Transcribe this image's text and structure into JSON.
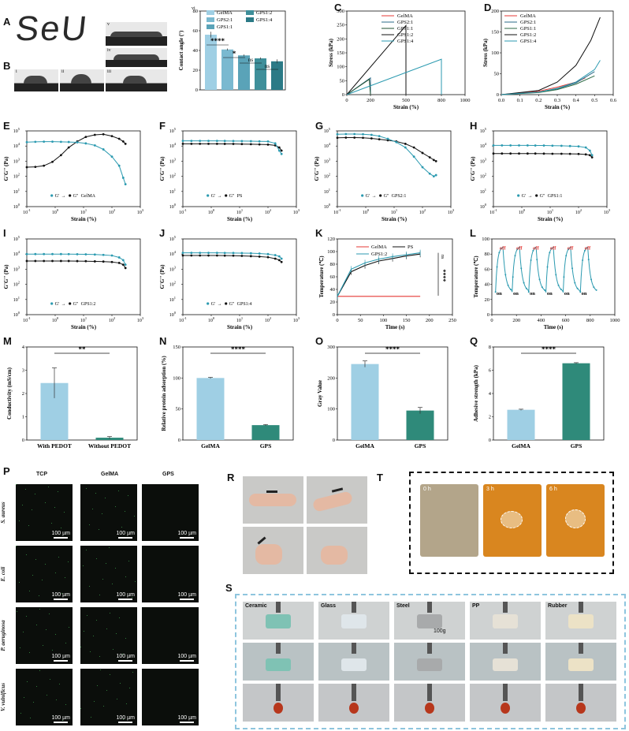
{
  "panels": {
    "A": "A",
    "B": "B",
    "C": "C",
    "D": "D",
    "E": "E",
    "F": "F",
    "G": "G",
    "H": "H",
    "I": "I",
    "J": "J",
    "K": "K",
    "L": "L",
    "M": "M",
    "N": "N",
    "O": "O",
    "Q": "Q",
    "P": "P",
    "R": "R",
    "T": "T",
    "S": "S"
  },
  "panel_a": {
    "writing": "SeU",
    "sublabels": [
      "v",
      "iv",
      "i",
      "ii",
      "iii"
    ]
  },
  "panel_b_chart": {
    "sublabel": "vi"
  },
  "panel_p": {
    "columns": [
      "TCP",
      "GelMA",
      "GPS"
    ],
    "rows": [
      "S. aureus",
      "E. coli",
      "P. aeruginosa",
      "V. vulnificus"
    ],
    "scale": "100 µm"
  },
  "panel_t": {
    "times": [
      "0 h",
      "3 h",
      "6 h"
    ]
  },
  "panel_s": {
    "materials": [
      "Ceramic",
      "Glass",
      "Steel",
      "PP",
      "Rubber"
    ],
    "weight": "100g"
  },
  "colors": {
    "gelma": "#9fcfe4",
    "gps21": "#7ab9d0",
    "gps11": "#5aa3b8",
    "gps12": "#3f8f9a",
    "gps14": "#2b7a86",
    "red": "#e53935",
    "black": "#111111",
    "teal": "#2b9ab0",
    "dark_teal": "#2f8a7a"
  },
  "chart_data": [
    {
      "id": "B-vi",
      "type": "bar",
      "ylabel": "Contact angle (°)",
      "ylim": [
        0,
        80
      ],
      "yticks": [
        0,
        20,
        40,
        60,
        80
      ],
      "series": [
        {
          "name": "GelMA",
          "value": 56,
          "err": 3
        },
        {
          "name": "GPS2:1",
          "value": 41,
          "err": 1
        },
        {
          "name": "GPS1:1",
          "value": 35,
          "err": 1
        },
        {
          "name": "GPS1:2",
          "value": 32,
          "err": 1
        },
        {
          "name": "GPS1:4",
          "value": 29,
          "err": 2
        }
      ],
      "legend": [
        "GelMA",
        "GPS2:1",
        "GPS1:1",
        "GPS1:2",
        "GPS1:4"
      ],
      "annotations": [
        "****",
        "*",
        "ns",
        "ns"
      ]
    },
    {
      "id": "C",
      "type": "line",
      "xlabel": "Strain (%)",
      "ylabel": "Stress (kPa)",
      "xlim": [
        0,
        1000
      ],
      "ylim": [
        0,
        300
      ],
      "xticks": [
        0,
        200,
        500,
        800,
        1000
      ],
      "yticks": [
        0,
        50,
        100,
        150,
        200,
        250,
        300
      ],
      "series": [
        {
          "name": "GelMA",
          "x": [
            0,
            5,
            10
          ],
          "y": [
            0,
            3,
            0
          ]
        },
        {
          "name": "GPS2:1",
          "x": [
            0,
            200,
            200
          ],
          "y": [
            0,
            60,
            0
          ]
        },
        {
          "name": "GPS1:1",
          "x": [
            0,
            190,
            200
          ],
          "y": [
            0,
            55,
            0
          ]
        },
        {
          "name": "GPS1:2",
          "x": [
            0,
            500,
            500
          ],
          "y": [
            0,
            248,
            0
          ]
        },
        {
          "name": "GPS1:4",
          "x": [
            0,
            800,
            800
          ],
          "y": [
            0,
            127,
            0
          ]
        }
      ]
    },
    {
      "id": "D",
      "type": "line",
      "xlabel": "Strain (%)",
      "ylabel": "Stress (kPa)",
      "xlim": [
        0,
        0.6
      ],
      "ylim": [
        0,
        200
      ],
      "xticks": [
        0.0,
        0.1,
        0.2,
        0.3,
        0.4,
        0.5,
        0.6
      ],
      "yticks": [
        0,
        50,
        100,
        150,
        200
      ],
      "series": [
        {
          "name": "GelMA",
          "x": [
            0,
            0.2,
            0.3,
            0.4,
            0.45
          ],
          "y": [
            0,
            8,
            18,
            30,
            40
          ]
        },
        {
          "name": "GPS2:1",
          "x": [
            0,
            0.2,
            0.3,
            0.4,
            0.5
          ],
          "y": [
            0,
            6,
            14,
            28,
            55
          ]
        },
        {
          "name": "GPS1:1",
          "x": [
            0,
            0.2,
            0.3,
            0.4,
            0.5
          ],
          "y": [
            0,
            5,
            12,
            25,
            45
          ]
        },
        {
          "name": "GPS1:2",
          "x": [
            0,
            0.2,
            0.3,
            0.4,
            0.48,
            0.53
          ],
          "y": [
            0,
            10,
            30,
            70,
            130,
            185
          ]
        },
        {
          "name": "GPS1:4",
          "x": [
            0,
            0.2,
            0.3,
            0.4,
            0.5,
            0.53
          ],
          "y": [
            0,
            6,
            15,
            30,
            60,
            82
          ]
        }
      ]
    },
    {
      "id": "E",
      "type": "line",
      "xlabel": "Strain (%)",
      "ylabel": "G'G'' (Pa)",
      "xscale": "log",
      "yscale": "log",
      "xlim": [
        0.1,
        1000
      ],
      "ylim": [
        1,
        100000
      ],
      "legend": [
        "G'",
        "G''",
        "GelMA"
      ]
    },
    {
      "id": "F",
      "type": "line",
      "xlabel": "Strain (%)",
      "ylabel": "G'G'' (Pa)",
      "xscale": "log",
      "yscale": "log",
      "legend": [
        "G'",
        "G''",
        "PS"
      ]
    },
    {
      "id": "G",
      "type": "line",
      "xlabel": "Strain (%)",
      "ylabel": "G'G'' (Pa)",
      "xscale": "log",
      "yscale": "log",
      "legend": [
        "G'",
        "G''",
        "GPS2:1"
      ]
    },
    {
      "id": "H",
      "type": "line",
      "xlabel": "Strain (%)",
      "ylabel": "G'G'' (Pa)",
      "xscale": "log",
      "yscale": "log",
      "legend": [
        "G'",
        "G''",
        "GPS1:1"
      ]
    },
    {
      "id": "I",
      "type": "line",
      "xlabel": "Strain (%)",
      "ylabel": "G'G'' (Pa)",
      "xscale": "log",
      "yscale": "log",
      "legend": [
        "G'",
        "G''",
        "GPS1:2"
      ]
    },
    {
      "id": "J",
      "type": "line",
      "xlabel": "Strain (%)",
      "ylabel": "G'G'' (Pa)",
      "xscale": "log",
      "yscale": "log",
      "legend": [
        "G'",
        "G''",
        "GPS1:4"
      ]
    },
    {
      "id": "K",
      "type": "line",
      "xlabel": "Time (s)",
      "ylabel": "Temperature (℃)",
      "xlim": [
        0,
        250
      ],
      "ylim": [
        0,
        120
      ],
      "xticks": [
        0,
        50,
        100,
        150,
        200,
        250
      ],
      "yticks": [
        0,
        20,
        40,
        60,
        80,
        100,
        120
      ],
      "series": [
        {
          "name": "GelMA",
          "x": [
            0,
            30,
            60,
            90,
            120,
            150,
            180
          ],
          "y": [
            29,
            29,
            29,
            29,
            29,
            29,
            29
          ]
        },
        {
          "name": "PS",
          "x": [
            0,
            30,
            60,
            90,
            120,
            150,
            180
          ],
          "y": [
            29,
            68,
            78,
            85,
            89,
            93,
            96
          ]
        },
        {
          "name": "GPS1:2",
          "x": [
            0,
            30,
            60,
            90,
            120,
            150,
            180
          ],
          "y": [
            29,
            72,
            82,
            88,
            92,
            95,
            98
          ]
        }
      ],
      "annotations": [
        "ns",
        "****"
      ]
    },
    {
      "id": "L",
      "type": "line",
      "xlabel": "Time (s)",
      "ylabel": "Temperature (℃)",
      "xlim": [
        0,
        1000
      ],
      "ylim": [
        0,
        100
      ],
      "xticks": [
        0,
        200,
        400,
        600,
        800,
        1000
      ],
      "yticks": [
        0,
        20,
        40,
        60,
        80,
        100
      ],
      "annotations": [
        "off",
        "on"
      ]
    },
    {
      "id": "M",
      "type": "bar",
      "ylabel": "Conductivity (mS/cm)",
      "categories": [
        "With PEDOT",
        "Without PEDOT"
      ],
      "values": [
        2.45,
        0.1
      ],
      "err": [
        0.65,
        0.05
      ],
      "ylim": [
        0,
        4
      ],
      "yticks": [
        0,
        1,
        2,
        3,
        4
      ],
      "annotations": [
        "**"
      ]
    },
    {
      "id": "N",
      "type": "bar",
      "ylabel": "Relative protein adsorption (%)",
      "categories": [
        "GelMA",
        "GPS"
      ],
      "values": [
        100,
        24
      ],
      "err": [
        1,
        1
      ],
      "ylim": [
        0,
        150
      ],
      "yticks": [
        0,
        50,
        100,
        150
      ],
      "annotations": [
        "****"
      ]
    },
    {
      "id": "O",
      "type": "bar",
      "ylabel": "Gray Value",
      "categories": [
        "GelMA",
        "GPS"
      ],
      "values": [
        245,
        95
      ],
      "err": [
        10,
        10
      ],
      "ylim": [
        0,
        300
      ],
      "yticks": [
        0,
        100,
        200,
        300
      ],
      "annotations": [
        "****"
      ]
    },
    {
      "id": "Q",
      "type": "bar",
      "ylabel": "Adhesive strength (kPa)",
      "categories": [
        "GelMA",
        "GPS"
      ],
      "values": [
        2.6,
        6.6
      ],
      "err": [
        0.05,
        0.05
      ],
      "ylim": [
        0,
        8
      ],
      "yticks": [
        0,
        2,
        4,
        6,
        8
      ],
      "annotations": [
        "****"
      ]
    }
  ]
}
